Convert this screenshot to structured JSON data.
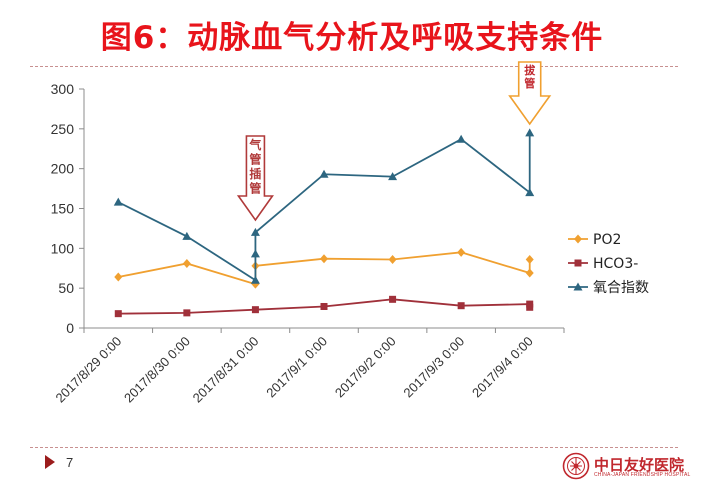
{
  "slide": {
    "title": "图6：动脉血气分析及呼吸支持条件",
    "page_number": "7"
  },
  "footer": {
    "hospital_name": "中日友好医院",
    "hospital_name_en": "CHINA-JAPAN FRIENDSHIP HOSPITAL",
    "accent_color": "#c0272d"
  },
  "annotations": {
    "intubation": {
      "label": "气管插管",
      "color": "#b03a3a"
    },
    "extubation": {
      "label": "拔管",
      "color": "#f0a030"
    }
  },
  "chart_data": {
    "type": "line",
    "title": "",
    "xlabel": "",
    "ylabel": "",
    "ylim": [
      0,
      300
    ],
    "yticks": [
      0,
      50,
      100,
      150,
      200,
      250,
      300
    ],
    "grid": false,
    "legend_position": "right",
    "categories": [
      "2017/8/29 0:00",
      "2017/8/30 0:00",
      "2017/8/31 0:00",
      "2017/9/1 0:00",
      "2017/9/2 0:00",
      "2017/9/3 0:00",
      "2017/9/4 0:00"
    ],
    "series": [
      {
        "name": "PO2",
        "color": "#f0a030",
        "marker": "diamond",
        "points": [
          {
            "x": "2017/8/29 0:00",
            "y": 64
          },
          {
            "x": "2017/8/30 0:00",
            "y": 81
          },
          {
            "x": "2017/8/31 0:00",
            "y": 55
          },
          {
            "x": "2017/8/31 0:00",
            "y": 78
          },
          {
            "x": "2017/9/1 0:00",
            "y": 87
          },
          {
            "x": "2017/9/2 0:00",
            "y": 86
          },
          {
            "x": "2017/9/3 0:00",
            "y": 95
          },
          {
            "x": "2017/9/4 0:00",
            "y": 69
          },
          {
            "x": "2017/9/4 0:00",
            "y": 86
          }
        ]
      },
      {
        "name": "HCO3-",
        "color": "#a0303a",
        "marker": "square",
        "points": [
          {
            "x": "2017/8/29 0:00",
            "y": 18
          },
          {
            "x": "2017/8/30 0:00",
            "y": 19
          },
          {
            "x": "2017/8/31 0:00",
            "y": 23
          },
          {
            "x": "2017/9/1 0:00",
            "y": 27
          },
          {
            "x": "2017/9/2 0:00",
            "y": 36
          },
          {
            "x": "2017/9/3 0:00",
            "y": 28
          },
          {
            "x": "2017/9/4 0:00",
            "y": 30
          },
          {
            "x": "2017/9/4 0:00",
            "y": 26
          }
        ]
      },
      {
        "name": "氧合指数",
        "color": "#2d6680",
        "marker": "triangle",
        "points": [
          {
            "x": "2017/8/29 0:00",
            "y": 158
          },
          {
            "x": "2017/8/30 0:00",
            "y": 115
          },
          {
            "x": "2017/8/31 0:00",
            "y": 60
          },
          {
            "x": "2017/8/31 0:00",
            "y": 93
          },
          {
            "x": "2017/8/31 0:00",
            "y": 120
          },
          {
            "x": "2017/9/1 0:00",
            "y": 193
          },
          {
            "x": "2017/9/2 0:00",
            "y": 190
          },
          {
            "x": "2017/9/3 0:00",
            "y": 237
          },
          {
            "x": "2017/9/4 0:00",
            "y": 170
          },
          {
            "x": "2017/9/4 0:00",
            "y": 245
          }
        ]
      }
    ]
  }
}
